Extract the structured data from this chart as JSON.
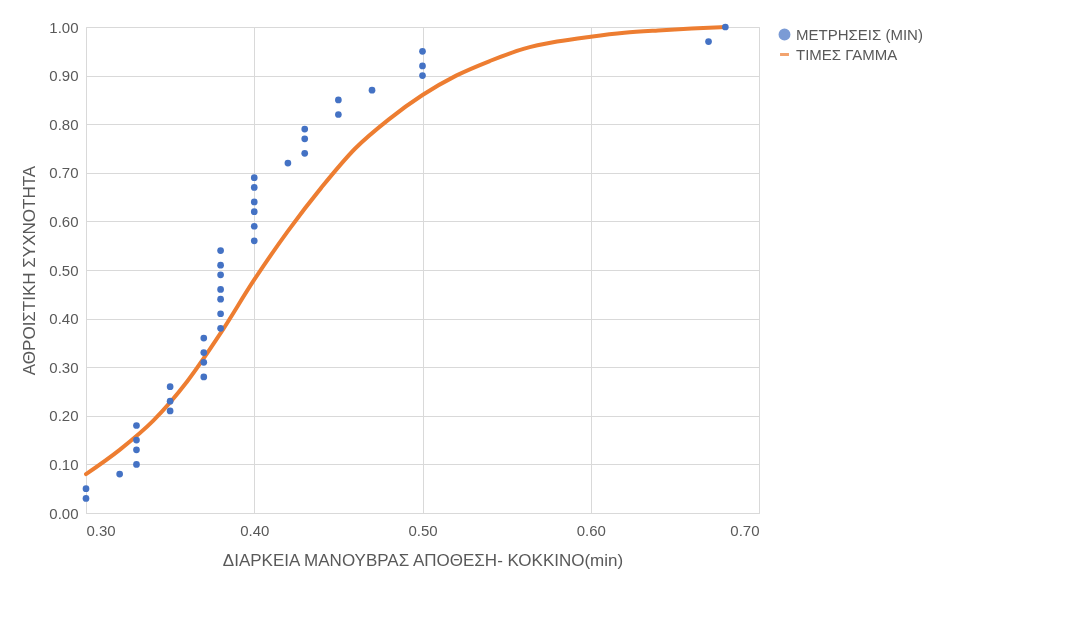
{
  "chart_data": {
    "type": "scatter",
    "xlabel": "ΔΙΑΡΚΕΙΑ ΜΑΝΟΥΒΡΑΣ ΑΠΟΘΕΣΗ- ΚΟΚΚΙΝΟ(min)",
    "ylabel": "ΑΘΡΟΙΣΤΙΚΗ ΣΥΧΝΟΤΗΤΑ",
    "xlim": [
      0.3,
      0.7
    ],
    "xticks": [
      {
        "value": 0.3,
        "label": "0.30"
      },
      {
        "value": 0.4,
        "label": "0.40"
      },
      {
        "value": 0.5,
        "label": "0.50"
      },
      {
        "value": 0.6,
        "label": "0.60"
      },
      {
        "value": 0.7,
        "label": "0.70"
      }
    ],
    "ylim": [
      0,
      1
    ],
    "yticks": [
      {
        "value": 0,
        "label": "0.00"
      },
      {
        "value": 0.1,
        "label": "0.10"
      },
      {
        "value": 0.2,
        "label": "0.20"
      },
      {
        "value": 0.3,
        "label": "0.30"
      },
      {
        "value": 0.4,
        "label": "0.40"
      },
      {
        "value": 0.5,
        "label": "0.50"
      },
      {
        "value": 0.6,
        "label": "0.60"
      },
      {
        "value": 0.7,
        "label": "0.70"
      },
      {
        "value": 0.8,
        "label": "0.80"
      },
      {
        "value": 0.9,
        "label": "0.90"
      },
      {
        "value": 1,
        "label": "1.00"
      }
    ],
    "grid": true,
    "legend": "right",
    "series": [
      {
        "name": "ΜΕΤΡΗΣΕΙΣ (MIN)",
        "marker": "circle",
        "color": "#4472c4",
        "x": [
          0.3,
          0.3,
          0.32,
          0.33,
          0.33,
          0.33,
          0.33,
          0.35,
          0.35,
          0.35,
          0.37,
          0.37,
          0.37,
          0.37,
          0.38,
          0.38,
          0.38,
          0.38,
          0.38,
          0.38,
          0.38,
          0.4,
          0.4,
          0.4,
          0.4,
          0.4,
          0.4,
          0.42,
          0.43,
          0.43,
          0.43,
          0.45,
          0.45,
          0.47,
          0.5,
          0.5,
          0.5,
          0.67,
          0.68
        ],
        "values": [
          0.03,
          0.05,
          0.08,
          0.1,
          0.13,
          0.15,
          0.18,
          0.21,
          0.23,
          0.26,
          0.28,
          0.31,
          0.33,
          0.36,
          0.38,
          0.41,
          0.44,
          0.46,
          0.49,
          0.51,
          0.54,
          0.56,
          0.59,
          0.62,
          0.64,
          0.67,
          0.69,
          0.72,
          0.74,
          0.77,
          0.79,
          0.82,
          0.85,
          0.87,
          0.9,
          0.92,
          0.95,
          0.97,
          1.0
        ]
      },
      {
        "name": "ΤΙΜΕΣ ΓΑΜΜΑ",
        "type": "line",
        "line_style": "solid",
        "color": "#ed7d31",
        "x": [
          0.3,
          0.32,
          0.34,
          0.36,
          0.38,
          0.4,
          0.42,
          0.44,
          0.46,
          0.48,
          0.5,
          0.52,
          0.54,
          0.56,
          0.58,
          0.6,
          0.62,
          0.64,
          0.66,
          0.68
        ],
        "values": [
          0.08,
          0.13,
          0.19,
          0.27,
          0.37,
          0.48,
          0.58,
          0.67,
          0.75,
          0.81,
          0.86,
          0.9,
          0.93,
          0.955,
          0.97,
          0.98,
          0.988,
          0.993,
          0.997,
          1.0
        ]
      }
    ]
  }
}
